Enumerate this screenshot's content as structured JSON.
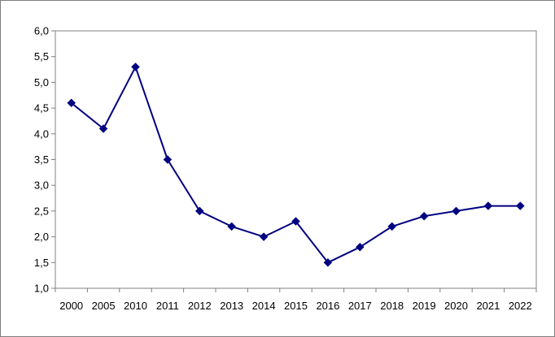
{
  "chart_data": {
    "type": "line",
    "categories": [
      "2000",
      "2005",
      "2010",
      "2011",
      "2012",
      "2013",
      "2014",
      "2015",
      "2016",
      "2017",
      "2018",
      "2019",
      "2020",
      "2021",
      "2022"
    ],
    "series": [
      {
        "values": [
          4.6,
          4.1,
          5.3,
          3.5,
          2.5,
          2.2,
          2.0,
          2.3,
          1.5,
          1.8,
          2.2,
          2.4,
          2.5,
          2.6,
          2.6
        ]
      }
    ],
    "y_ticks": [
      "1,0",
      "1,5",
      "2,0",
      "2,5",
      "3,0",
      "3,5",
      "4,0",
      "4,5",
      "5,0",
      "5,5",
      "6,0"
    ],
    "ylim": [
      1.0,
      6.0
    ],
    "grid": false,
    "legend": "none",
    "title": "",
    "xlabel": "",
    "ylabel": "",
    "colors": {
      "line": "#000080",
      "marker": "#000080",
      "axis": "#808080",
      "border": "#7f7f7f"
    }
  }
}
